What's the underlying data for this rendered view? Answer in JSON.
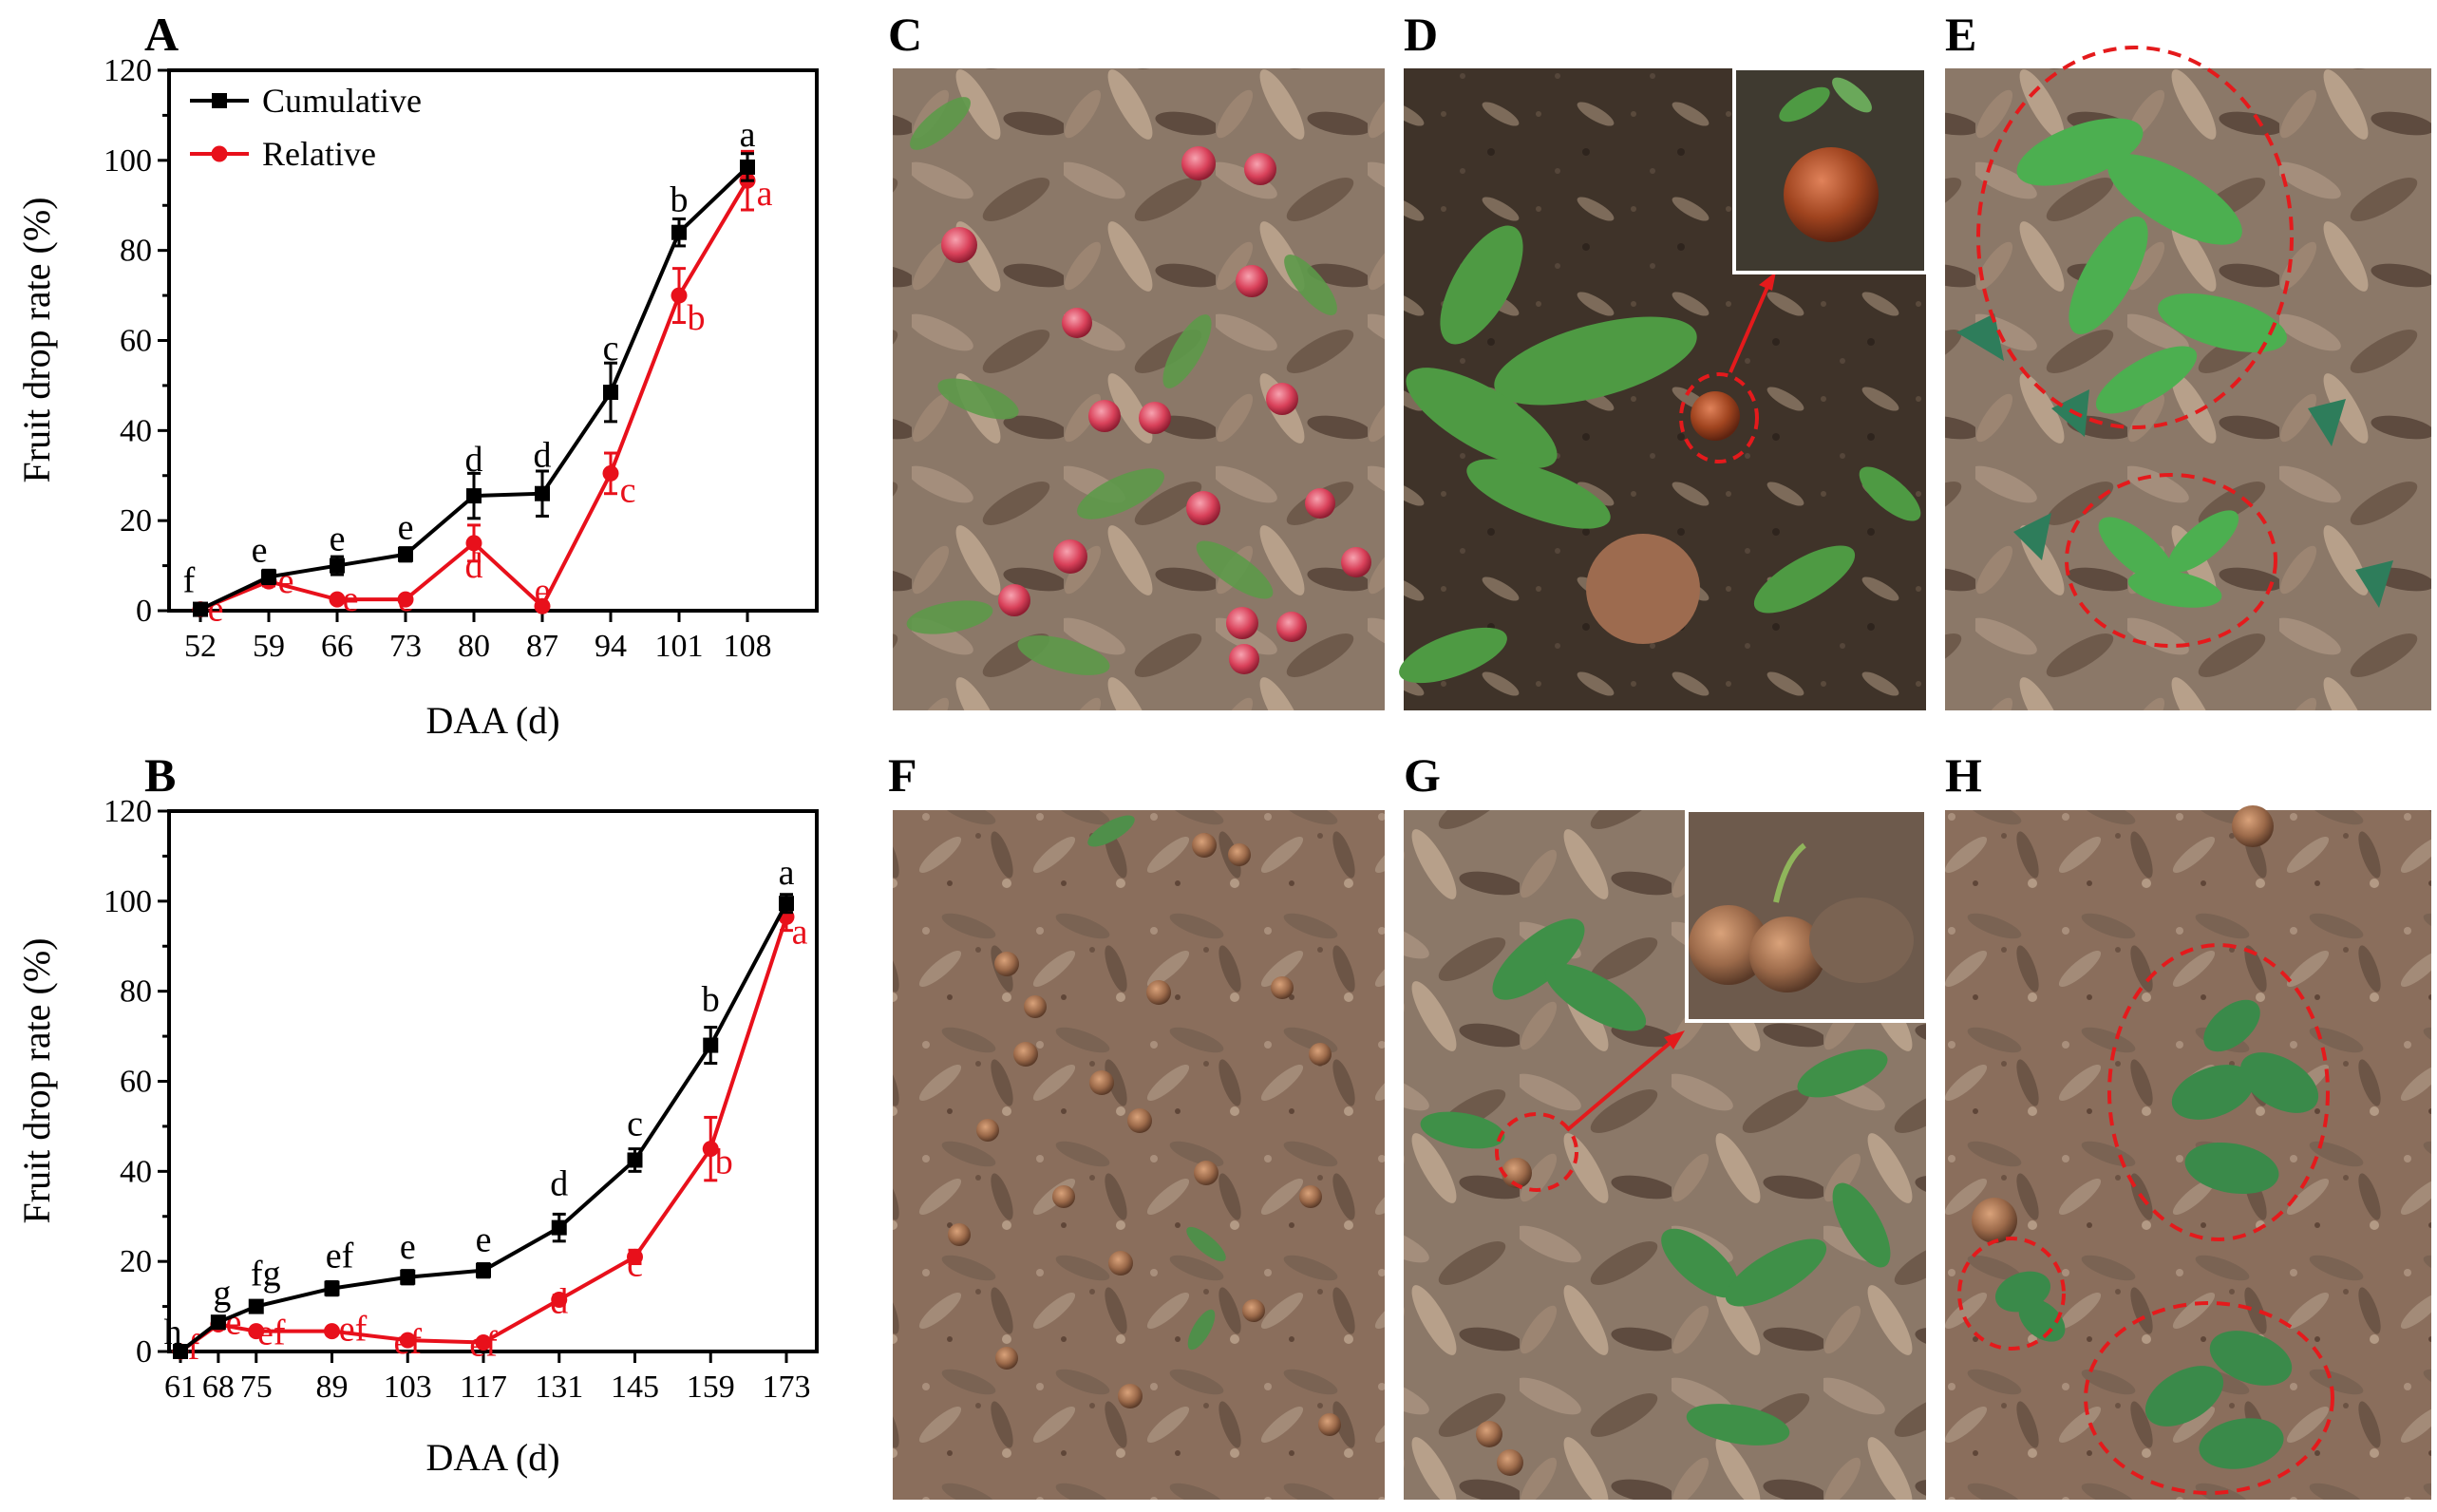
{
  "colors": {
    "cumulative": "#000000",
    "relative": "#e8101b",
    "dashed_circle": "#e41a1c",
    "arrow": "#e41a1c"
  },
  "panels": {
    "A": "A",
    "B": "B",
    "C": "C",
    "D": "D",
    "E": "E",
    "F": "F",
    "G": "G",
    "H": "H"
  },
  "photos": {
    "C": "fallen red fruits on ground",
    "D": "germinating fruit seedling with inset",
    "E": "seedlings circled",
    "F": "fallen brown fruits on soil",
    "G": "germinating fruit with inset",
    "H": "seedlings circled"
  },
  "chart_data": [
    {
      "type": "line",
      "panel": "A",
      "x": [
        52,
        59,
        66,
        73,
        80,
        87,
        94,
        101,
        108
      ],
      "categories": [
        "52",
        "59",
        "66",
        "73",
        "80",
        "87",
        "94",
        "101",
        "108"
      ],
      "xlabel": "DAA (d)",
      "ylabel": "Fruit drop rate (%)",
      "ylim": [
        0,
        120
      ],
      "yticks": [
        "0",
        "20",
        "40",
        "60",
        "80",
        "100",
        "120"
      ],
      "legend": [
        "Cumulative",
        "Relative"
      ],
      "legend_position": "top-left",
      "series": [
        {
          "name": "Cumulative",
          "values": [
            0.3,
            7.5,
            10,
            12.5,
            25.5,
            26,
            48.5,
            84,
            98.5
          ],
          "errors": [
            0.3,
            1.5,
            2,
            1.5,
            5,
            5,
            6.5,
            3,
            3
          ],
          "labels": [
            "f",
            "e",
            "e",
            "e",
            "d",
            "d",
            "c",
            "b",
            "a"
          ]
        },
        {
          "name": "Relative",
          "values": [
            0.3,
            6.5,
            2.5,
            2.5,
            15,
            1,
            30.5,
            70,
            95.5
          ],
          "errors": [
            0.3,
            1,
            0.5,
            0.5,
            4,
            0.5,
            4.5,
            6,
            6.5
          ],
          "labels": [
            "e",
            "e",
            "e",
            "e",
            "d",
            "e",
            "c",
            "b",
            "a"
          ]
        }
      ]
    },
    {
      "type": "line",
      "panel": "B",
      "x": [
        61,
        68,
        75,
        89,
        103,
        117,
        131,
        145,
        159,
        173
      ],
      "categories": [
        "61",
        "68",
        "75",
        "89",
        "103",
        "117",
        "131",
        "145",
        "159",
        "173"
      ],
      "xlabel": "DAA (d)",
      "ylabel": "Fruit drop rate (%)",
      "ylim": [
        0,
        120
      ],
      "yticks": [
        "0",
        "20",
        "40",
        "60",
        "80",
        "100",
        "120"
      ],
      "series": [
        {
          "name": "Cumulative",
          "values": [
            0,
            6.5,
            10,
            14,
            16.5,
            18,
            27.5,
            42.5,
            68,
            99.5
          ],
          "errors": [
            0.3,
            1,
            1.2,
            1.5,
            1.5,
            1.5,
            3,
            2.5,
            4,
            2
          ],
          "labels": [
            "h",
            "g",
            "fg",
            "ef",
            "e",
            "e",
            "d",
            "c",
            "b",
            "a"
          ]
        },
        {
          "name": "Relative",
          "values": [
            0,
            6,
            4.5,
            4.5,
            2.5,
            2,
            11.5,
            21,
            45,
            96.5
          ],
          "errors": [
            0.3,
            1,
            0.5,
            0.5,
            0.5,
            0.5,
            1,
            1.5,
            7,
            3
          ],
          "labels": [
            "f",
            "e",
            "ef",
            "ef",
            "ef",
            "ef",
            "d",
            "c",
            "b",
            "a"
          ]
        }
      ]
    }
  ]
}
